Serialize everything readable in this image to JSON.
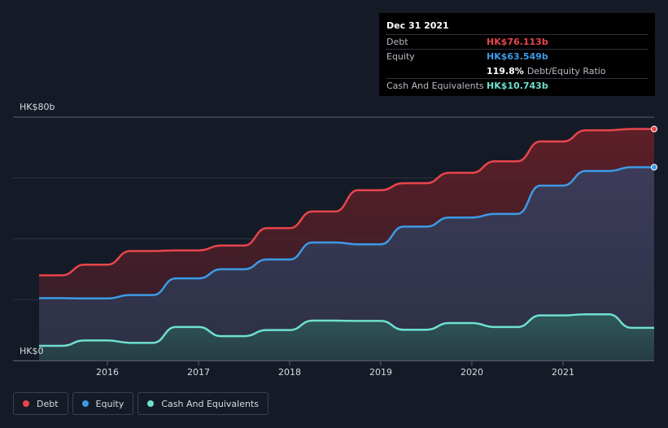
{
  "tooltip": {
    "date": "Dec 31 2021",
    "rows": [
      {
        "label": "Debt",
        "value": "HK$76.113b",
        "color": "#e8464b"
      },
      {
        "label": "Equity",
        "value": "HK$63.549b",
        "color": "#3c9be6"
      },
      {
        "label": "",
        "value": "119.8%",
        "extra": "Debt/Equity Ratio",
        "color": "#ffffff"
      },
      {
        "label": "Cash And Equivalents",
        "value": "HK$10.743b",
        "color": "#6fe0cf"
      }
    ]
  },
  "legend": [
    {
      "label": "Debt",
      "color": "#e8464b"
    },
    {
      "label": "Equity",
      "color": "#3c9be6"
    },
    {
      "label": "Cash And Equivalents",
      "color": "#6fe0cf"
    }
  ],
  "chart_data": {
    "type": "area",
    "ylim": [
      0,
      80
    ],
    "xlim": [
      2015.25,
      2022.0
    ],
    "y_tick_labels": [
      {
        "value": 80,
        "label": "HK$80b"
      },
      {
        "value": 0,
        "label": "HK$0"
      }
    ],
    "x_ticks": [
      2016,
      2017,
      2018,
      2019,
      2020,
      2021
    ],
    "grid": true,
    "series": [
      {
        "name": "Debt",
        "color": "#e8464b",
        "points": [
          [
            2015.25,
            28
          ],
          [
            2015.5,
            28
          ],
          [
            2015.75,
            31.5
          ],
          [
            2016.0,
            31.5
          ],
          [
            2016.25,
            36
          ],
          [
            2016.5,
            36
          ],
          [
            2016.75,
            36.2
          ],
          [
            2017.0,
            36.2
          ],
          [
            2017.25,
            37.8
          ],
          [
            2017.5,
            37.8
          ],
          [
            2017.75,
            43.5
          ],
          [
            2018.0,
            43.5
          ],
          [
            2018.25,
            49
          ],
          [
            2018.5,
            49
          ],
          [
            2018.75,
            56
          ],
          [
            2019.0,
            56
          ],
          [
            2019.25,
            58.3
          ],
          [
            2019.5,
            58.3
          ],
          [
            2019.75,
            61.7
          ],
          [
            2020.0,
            61.7
          ],
          [
            2020.25,
            65.5
          ],
          [
            2020.5,
            65.5
          ],
          [
            2020.75,
            72
          ],
          [
            2021.0,
            72
          ],
          [
            2021.25,
            75.7
          ],
          [
            2021.5,
            75.7
          ],
          [
            2021.75,
            76.113
          ],
          [
            2022.0,
            76.113
          ]
        ]
      },
      {
        "name": "Equity",
        "color": "#3c9be6",
        "points": [
          [
            2015.25,
            20.5
          ],
          [
            2015.5,
            20.5
          ],
          [
            2015.75,
            20.4
          ],
          [
            2016.0,
            20.4
          ],
          [
            2016.25,
            21.5
          ],
          [
            2016.5,
            21.5
          ],
          [
            2016.75,
            27
          ],
          [
            2017.0,
            27
          ],
          [
            2017.25,
            30
          ],
          [
            2017.5,
            30
          ],
          [
            2017.75,
            33.2
          ],
          [
            2018.0,
            33.2
          ],
          [
            2018.25,
            38.8
          ],
          [
            2018.5,
            38.8
          ],
          [
            2018.75,
            38.2
          ],
          [
            2019.0,
            38.2
          ],
          [
            2019.25,
            44
          ],
          [
            2019.5,
            44
          ],
          [
            2019.75,
            47
          ],
          [
            2020.0,
            47
          ],
          [
            2020.25,
            48.2
          ],
          [
            2020.5,
            48.2
          ],
          [
            2020.75,
            57.5
          ],
          [
            2021.0,
            57.5
          ],
          [
            2021.25,
            62.3
          ],
          [
            2021.5,
            62.3
          ],
          [
            2021.75,
            63.549
          ],
          [
            2022.0,
            63.549
          ]
        ]
      },
      {
        "name": "Cash And Equivalents",
        "color": "#6fe0cf",
        "points": [
          [
            2015.25,
            4.8
          ],
          [
            2015.5,
            4.8
          ],
          [
            2015.75,
            6.6
          ],
          [
            2016.0,
            6.6
          ],
          [
            2016.25,
            5.8
          ],
          [
            2016.5,
            5.8
          ],
          [
            2016.75,
            11
          ],
          [
            2017.0,
            11
          ],
          [
            2017.25,
            8
          ],
          [
            2017.5,
            8
          ],
          [
            2017.75,
            10
          ],
          [
            2018.0,
            10
          ],
          [
            2018.25,
            13.1
          ],
          [
            2018.5,
            13.1
          ],
          [
            2018.75,
            13
          ],
          [
            2019.0,
            13
          ],
          [
            2019.25,
            10.1
          ],
          [
            2019.5,
            10.1
          ],
          [
            2019.75,
            12.3
          ],
          [
            2020.0,
            12.3
          ],
          [
            2020.25,
            11
          ],
          [
            2020.5,
            11
          ],
          [
            2020.75,
            14.8
          ],
          [
            2021.0,
            14.8
          ],
          [
            2021.25,
            15.2
          ],
          [
            2021.5,
            15.2
          ],
          [
            2021.75,
            10.743
          ],
          [
            2022.0,
            10.743
          ]
        ]
      }
    ]
  }
}
